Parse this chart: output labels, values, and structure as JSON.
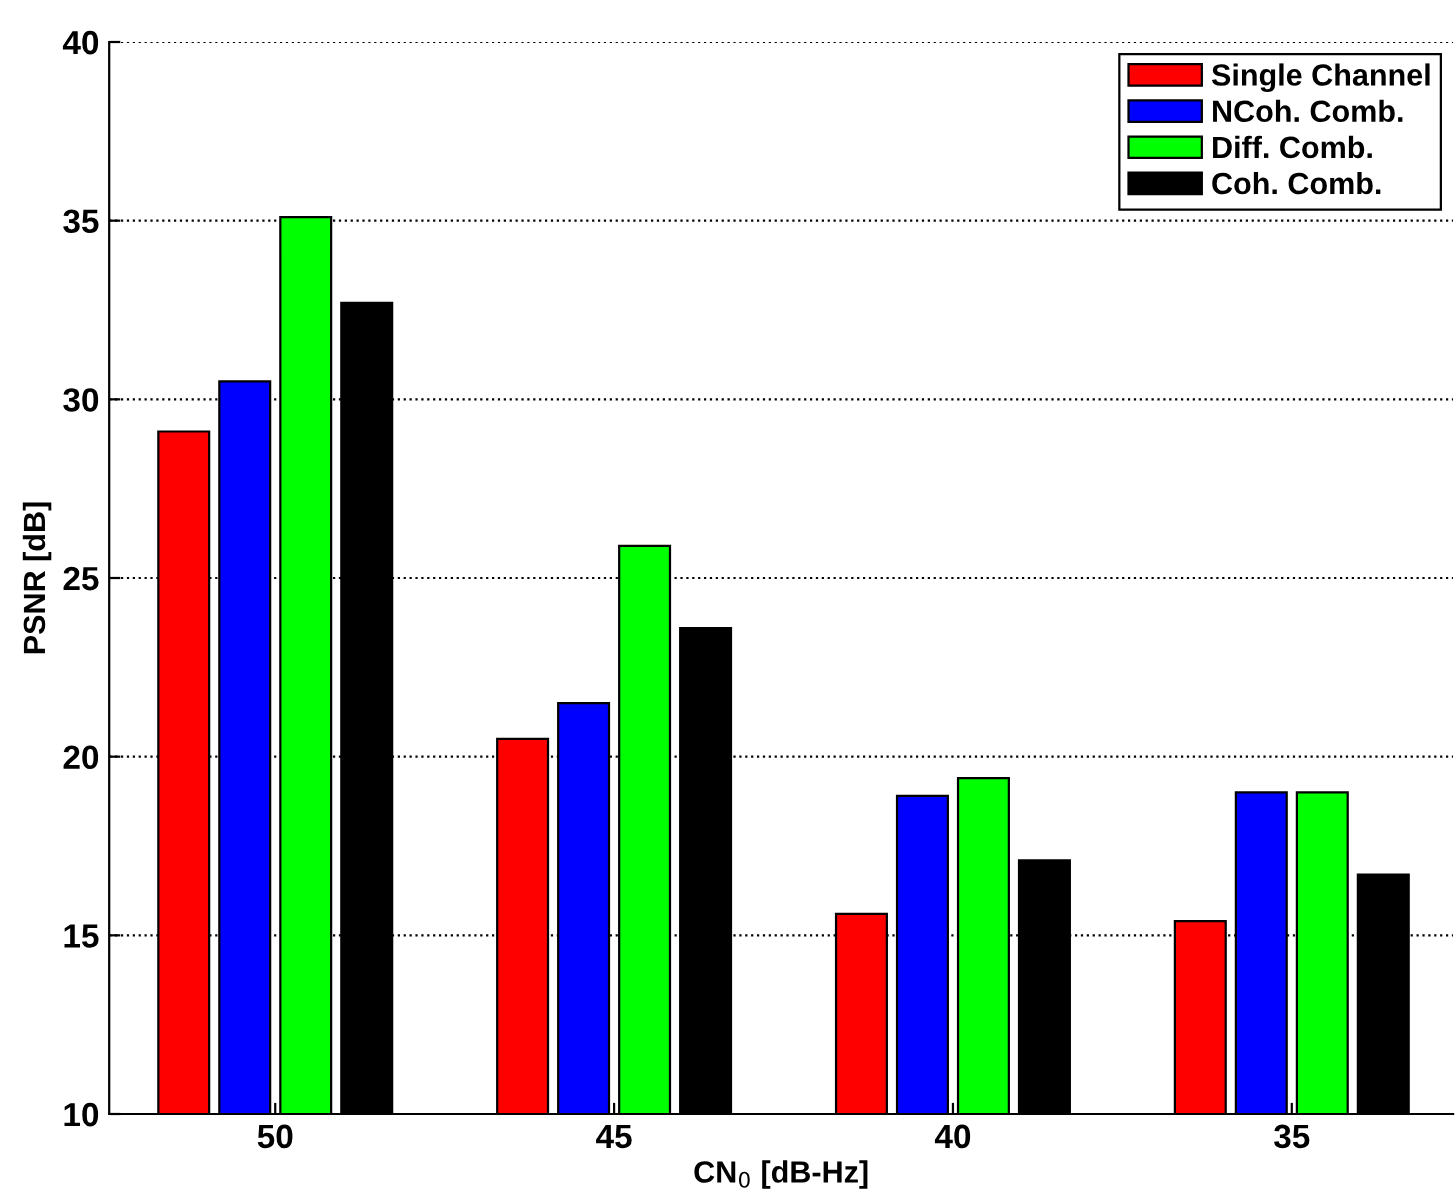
{
  "chart_data": {
    "type": "bar",
    "xlabel": "CN$_{0}$ [dB-Hz]",
    "ylabel": "PSNR [dB]",
    "categories": [
      "50",
      "45",
      "40",
      "35"
    ],
    "series": [
      {
        "name": "Single Channel",
        "color": "#ff0000",
        "values": [
          29.1,
          20.5,
          15.6,
          15.4
        ]
      },
      {
        "name": "NCoh. Comb.",
        "color": "#0000ff",
        "values": [
          30.5,
          21.5,
          18.9,
          19.0
        ]
      },
      {
        "name": "Diff. Comb.",
        "color": "#00ff00",
        "values": [
          35.1,
          25.9,
          19.4,
          19.0
        ]
      },
      {
        "name": "Coh. Comb.",
        "color": "#000000",
        "values": [
          32.7,
          23.6,
          17.1,
          16.7
        ]
      }
    ],
    "ylim": [
      10,
      40
    ],
    "yticks": [
      10,
      15,
      20,
      25,
      30,
      35,
      40
    ],
    "grid": "y",
    "legend": "top right"
  }
}
